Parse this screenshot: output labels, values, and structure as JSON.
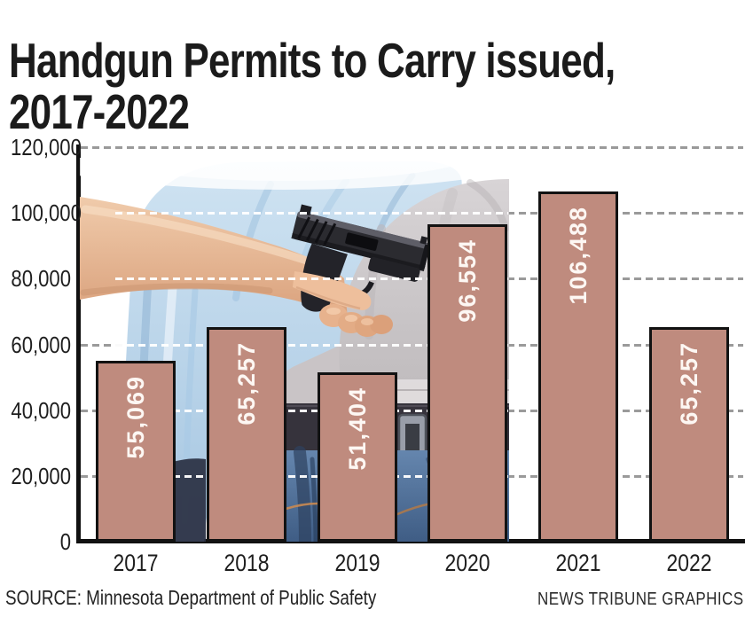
{
  "title": {
    "line1": "Handgun Permits to Carry issued,",
    "line2": "2017-2022"
  },
  "source": "SOURCE: Minnesota Department of Public Safety",
  "credit": "NEWS TRIBUNE GRAPHICS",
  "chart_data": {
    "type": "bar",
    "title": "Handgun Permits to Carry issued, 2017-2022",
    "categories": [
      "2017",
      "2018",
      "2019",
      "2020",
      "2021",
      "2022"
    ],
    "values": [
      55069,
      65257,
      51404,
      96554,
      106488,
      65257
    ],
    "value_labels": [
      "55,069",
      "65,257",
      "51,404",
      "96,554",
      "106,488",
      "65,257"
    ],
    "xlabel": "",
    "ylabel": "",
    "ylim": [
      0,
      120000
    ],
    "ytick_interval": 20000,
    "ytick_labels": [
      "0",
      "20,000",
      "40,000",
      "60,000",
      "80,000",
      "100,000",
      "120,000"
    ],
    "grid": "horizontal dashed",
    "legend": "none",
    "bar_color": "#bf8b7e",
    "bar_border_color": "#121212",
    "bar_label_color": "#ffffff",
    "grid_color_on_white": "#9a9a9a",
    "grid_color_on_photo": "#ffffff",
    "background_note": "photo of man tucking a black handgun into the back waistband of his jeans"
  }
}
